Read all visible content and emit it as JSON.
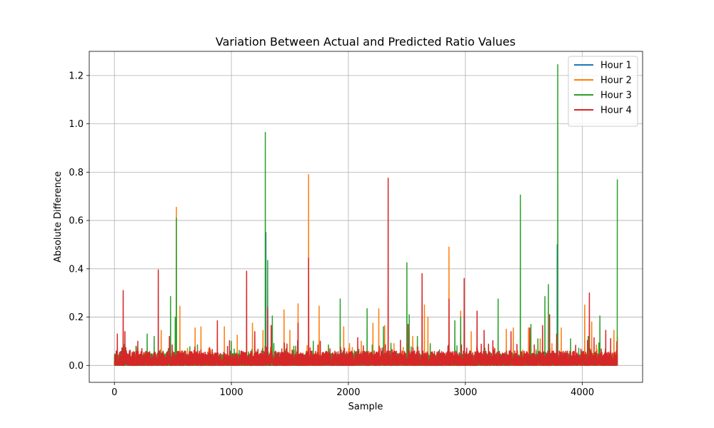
{
  "chart_data": {
    "type": "line",
    "title": "Variation Between Actual and Predicted Ratio Values",
    "xlabel": "Sample",
    "ylabel": "Absolute Difference",
    "xlim": [
      -215,
      4515
    ],
    "ylim": [
      -0.07,
      1.3
    ],
    "x_ticks": [
      0,
      1000,
      2000,
      3000,
      4000
    ],
    "x_tick_labels": [
      "0",
      "1000",
      "2000",
      "3000",
      "4000"
    ],
    "y_ticks": [
      0.0,
      0.2,
      0.4,
      0.6,
      0.8,
      1.0,
      1.2
    ],
    "y_tick_labels": [
      "0.0",
      "0.2",
      "0.4",
      "0.6",
      "0.8",
      "1.0",
      "1.2"
    ],
    "grid": true,
    "legend_position": "top-right",
    "n_samples": 4300,
    "series": [
      {
        "name": "Hour 1",
        "color": "#1f77b4",
        "baseline_max": 0.035,
        "peaks": [
          [
            1295,
            0.55
          ],
          [
            3785,
            0.5
          ]
        ]
      },
      {
        "name": "Hour 2",
        "color": "#ff7f0e",
        "baseline_max": 0.045,
        "peaks": [
          [
            80,
            0.07
          ],
          [
            160,
            0.05
          ],
          [
            400,
            0.145
          ],
          [
            530,
            0.655
          ],
          [
            560,
            0.245
          ],
          [
            690,
            0.155
          ],
          [
            740,
            0.16
          ],
          [
            940,
            0.16
          ],
          [
            1050,
            0.125
          ],
          [
            1180,
            0.175
          ],
          [
            1270,
            0.145
          ],
          [
            1450,
            0.23
          ],
          [
            1500,
            0.145
          ],
          [
            1570,
            0.255
          ],
          [
            1660,
            0.79
          ],
          [
            1750,
            0.245
          ],
          [
            1830,
            0.08
          ],
          [
            1960,
            0.16
          ],
          [
            2010,
            0.09
          ],
          [
            2110,
            0.1
          ],
          [
            2210,
            0.175
          ],
          [
            2260,
            0.235
          ],
          [
            2310,
            0.165
          ],
          [
            2390,
            0.09
          ],
          [
            2550,
            0.12
          ],
          [
            2650,
            0.25
          ],
          [
            2680,
            0.2
          ],
          [
            2860,
            0.49
          ],
          [
            2960,
            0.225
          ],
          [
            3050,
            0.14
          ],
          [
            3240,
            0.075
          ],
          [
            3350,
            0.15
          ],
          [
            3410,
            0.155
          ],
          [
            3540,
            0.155
          ],
          [
            3640,
            0.11
          ],
          [
            3740,
            0.09
          ],
          [
            3820,
            0.155
          ],
          [
            4020,
            0.25
          ],
          [
            4080,
            0.18
          ],
          [
            4120,
            0.085
          ],
          [
            4270,
            0.145
          ],
          [
            4300,
            0.12
          ]
        ]
      },
      {
        "name": "Hour 3",
        "color": "#2ca02c",
        "baseline_max": 0.05,
        "peaks": [
          [
            100,
            0.06
          ],
          [
            280,
            0.13
          ],
          [
            340,
            0.12
          ],
          [
            480,
            0.285
          ],
          [
            520,
            0.2
          ],
          [
            530,
            0.61
          ],
          [
            600,
            0.06
          ],
          [
            710,
            0.085
          ],
          [
            1000,
            0.1
          ],
          [
            1290,
            0.965
          ],
          [
            1310,
            0.435
          ],
          [
            1350,
            0.205
          ],
          [
            1550,
            0.08
          ],
          [
            1700,
            0.1
          ],
          [
            1830,
            0.085
          ],
          [
            1930,
            0.275
          ],
          [
            2160,
            0.235
          ],
          [
            2300,
            0.16
          ],
          [
            2500,
            0.425
          ],
          [
            2520,
            0.21
          ],
          [
            2590,
            0.12
          ],
          [
            2700,
            0.09
          ],
          [
            2910,
            0.185
          ],
          [
            2960,
            0.2
          ],
          [
            3100,
            0.085
          ],
          [
            3280,
            0.275
          ],
          [
            3470,
            0.705
          ],
          [
            3560,
            0.17
          ],
          [
            3620,
            0.11
          ],
          [
            3680,
            0.285
          ],
          [
            3710,
            0.335
          ],
          [
            3790,
            1.245
          ],
          [
            3900,
            0.11
          ],
          [
            4050,
            0.12
          ],
          [
            4150,
            0.205
          ],
          [
            4300,
            0.77
          ]
        ]
      },
      {
        "name": "Hour 4",
        "color": "#d62728",
        "baseline_max": 0.06,
        "peaks": [
          [
            25,
            0.13
          ],
          [
            75,
            0.31
          ],
          [
            90,
            0.14
          ],
          [
            200,
            0.1
          ],
          [
            375,
            0.395
          ],
          [
            470,
            0.12
          ],
          [
            580,
            0.06
          ],
          [
            880,
            0.185
          ],
          [
            1130,
            0.39
          ],
          [
            1200,
            0.14
          ],
          [
            1310,
            0.24
          ],
          [
            1340,
            0.165
          ],
          [
            1570,
            0.175
          ],
          [
            1660,
            0.445
          ],
          [
            1760,
            0.1
          ],
          [
            2080,
            0.115
          ],
          [
            2340,
            0.775
          ],
          [
            2510,
            0.17
          ],
          [
            2630,
            0.38
          ],
          [
            2860,
            0.275
          ],
          [
            2990,
            0.36
          ],
          [
            3100,
            0.225
          ],
          [
            3160,
            0.145
          ],
          [
            3390,
            0.14
          ],
          [
            3550,
            0.155
          ],
          [
            3660,
            0.165
          ],
          [
            3720,
            0.21
          ],
          [
            3780,
            0.13
          ],
          [
            4060,
            0.3
          ],
          [
            4100,
            0.115
          ],
          [
            4200,
            0.145
          ]
        ]
      }
    ]
  }
}
